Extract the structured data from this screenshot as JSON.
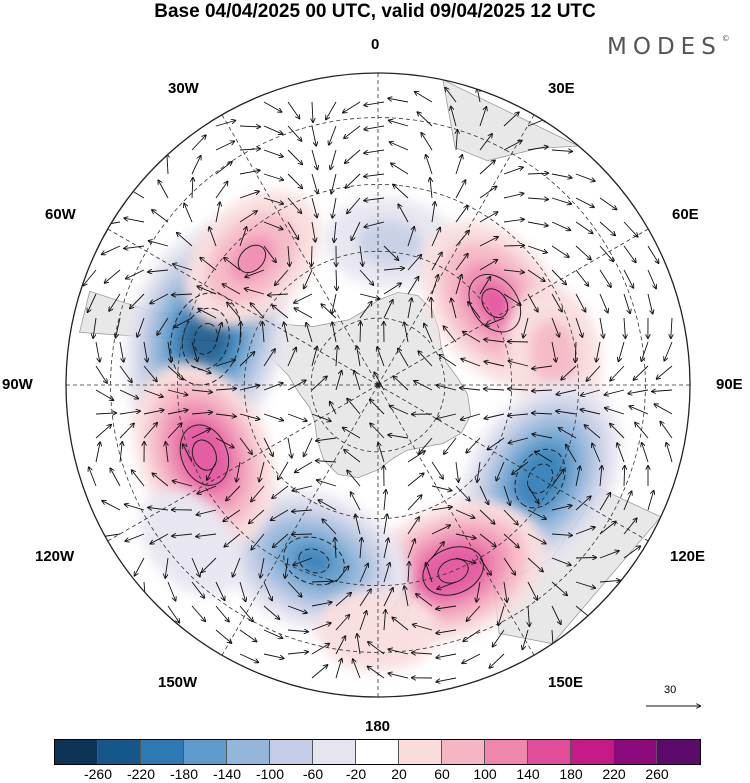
{
  "title": "Base 04/04/2025 00 UTC, valid 09/04/2025 12 UTC",
  "brand": "MODES",
  "brand_mark": "©",
  "longitude_labels": {
    "top": "0",
    "top_left": "30W",
    "top_right": "30E",
    "upper_left": "60W",
    "upper_right": "60E",
    "left": "90W",
    "right": "90E",
    "lower_left": "120W",
    "lower_right": "120E",
    "bottom_left": "150W",
    "bottom_right": "150E",
    "bottom": "180"
  },
  "vector_scale_label": "30",
  "colorbar": {
    "colors": [
      "#0d3355",
      "#15578a",
      "#2b7ab6",
      "#5f9bcb",
      "#94b6da",
      "#c4cde5",
      "#e6e4f0",
      "#ffffff",
      "#f9dcdc",
      "#f5b5c3",
      "#ef86ae",
      "#e24d9a",
      "#c61a86",
      "#8b0b7a",
      "#5c0a6b"
    ],
    "ticks": [
      "-260",
      "-220",
      "-180",
      "-140",
      "-100",
      "-60",
      "-20",
      "20",
      "60",
      "100",
      "140",
      "180",
      "220",
      "260"
    ]
  },
  "anomaly_centers": [
    {
      "lon": -75,
      "lat": -50,
      "value": -240
    },
    {
      "lon": -45,
      "lat": -50,
      "value": 110
    },
    {
      "lon": 5,
      "lat": -58,
      "value": -60
    },
    {
      "lon": 55,
      "lat": -58,
      "value": 150
    },
    {
      "lon": 80,
      "lat": -50,
      "value": 70
    },
    {
      "lon": 120,
      "lat": -48,
      "value": -200
    },
    {
      "lon": 158,
      "lat": -45,
      "value": 170
    },
    {
      "lon": -160,
      "lat": -48,
      "value": -180
    },
    {
      "lon": -112,
      "lat": -48,
      "value": 170
    },
    {
      "lon": -130,
      "lat": -35,
      "value": -40
    },
    {
      "lon": 180,
      "lat": -35,
      "value": 40
    }
  ]
}
